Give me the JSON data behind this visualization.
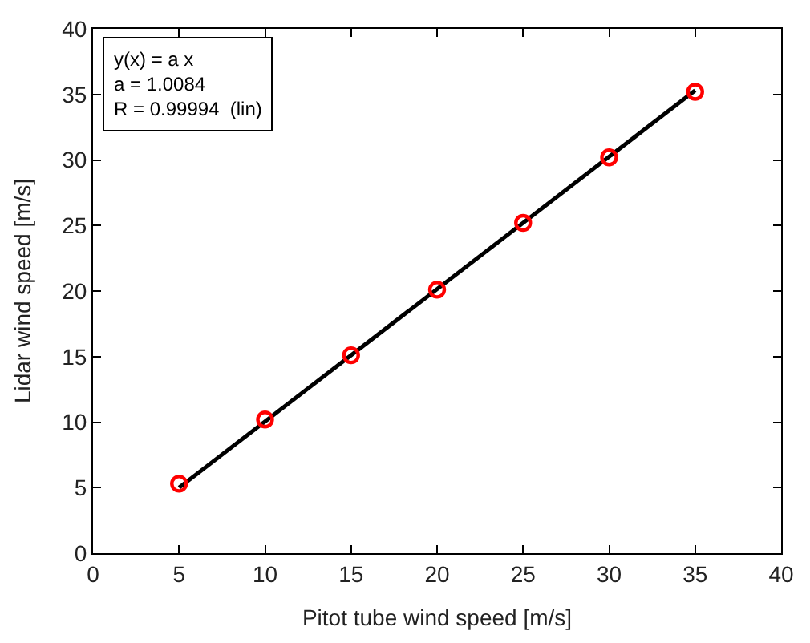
{
  "chart_data": {
    "type": "scatter",
    "xlabel": "Pitot tube wind speed [m/s]",
    "ylabel": "Lidar wind speed [m/s]",
    "annotations": [
      "y(x) = a x\na = 1.0084\nR = 0.99994  (lin)"
    ],
    "x": [
      5,
      10,
      15,
      20,
      25,
      30,
      35
    ],
    "series": [
      {
        "type": "line",
        "color": "#000000",
        "x": [
          5,
          35
        ],
        "values": [
          5.0,
          35.3
        ],
        "line_style": "solid",
        "marker": "none"
      },
      {
        "color": "#ff0000",
        "values": [
          5.3,
          10.2,
          15.1,
          20.1,
          25.2,
          30.2,
          35.2
        ],
        "marker": "circle"
      }
    ],
    "xlim": [
      0,
      40
    ],
    "xticks": [
      0,
      5,
      10,
      15,
      20,
      25,
      30,
      35,
      40
    ],
    "ylim": [
      0,
      40
    ],
    "yticks": [
      0,
      5,
      10,
      15,
      20,
      25,
      30,
      35,
      40
    ]
  }
}
